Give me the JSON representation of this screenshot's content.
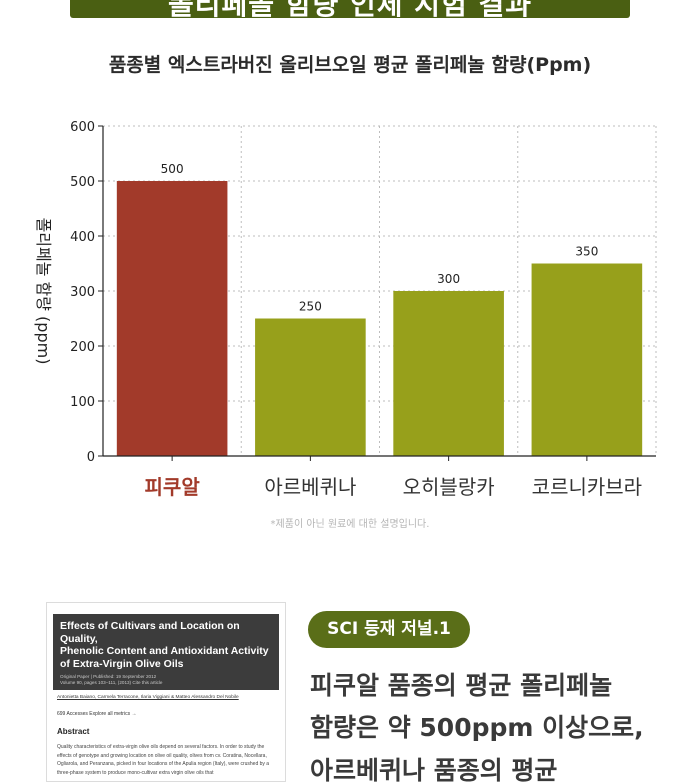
{
  "banner": {
    "text": "폴리페놀 함량 인체 시험 결과"
  },
  "chart_data": {
    "type": "bar",
    "title": "품종별 엑스트라버진 올리브오일 평균 폴리페놀 함량(Ppm)",
    "ylabel": "폴리페놀 함량 (ppm)",
    "xlabel": "",
    "categories": [
      "피쿠알",
      "아르베퀴나",
      "오히블랑카",
      "코르니카브라"
    ],
    "values": [
      500,
      250,
      300,
      350
    ],
    "data_labels": [
      "500",
      "250",
      "300",
      "350"
    ],
    "ylim": [
      0,
      600
    ],
    "yticks": [
      "0",
      "100",
      "200",
      "300",
      "400",
      "500",
      "600"
    ],
    "grid": true,
    "colors": {
      "highlight": "#a23a2a",
      "default": "#97a01b",
      "highlight_label": "#a23a2a",
      "default_label": "#333333",
      "grid": "#bdbdbd"
    },
    "note": "*제품이 아닌 원료에 대한 설명입니다."
  },
  "paper": {
    "title_lines": [
      "Effects of Cultivars and Location on Quality,",
      "Phenolic Content and Antioxidant Activity",
      "of Extra-Virgin Olive Oils"
    ],
    "meta_line1": "Original Paper | Published: 19 September 2012",
    "meta_line2": "Volume 90, pages 103–111, (2013)   Cite this article",
    "authors": "Antonietta Baiano, Carmela Terracone, Ilaria Viggiani & Matteo Alessandro Del Nobile",
    "access": "699  Accesses    Explore all metrics →",
    "abstract_heading": "Abstract",
    "abstract_text": "Quality characteristics of extra-virgin olive oils depend on several factors. In order to study the effects of genotype and growing location on olive oil quality, olives from cv. Coratina, Nocellara, Ogliarola, and Peranzana, picked in four locations of the Apulia region (Italy), were crushed by a three-phase system to produce mono-cultivar extra virgin olive oils that"
  },
  "badge": {
    "text": "SCI 등재 저널.1"
  },
  "finding": {
    "line1": "피쿠알 품종의 평균 폴리페놀",
    "line2": "함량은 약 500ppm 이상으로,",
    "line3": "아르베퀴나 품종의 평균"
  }
}
